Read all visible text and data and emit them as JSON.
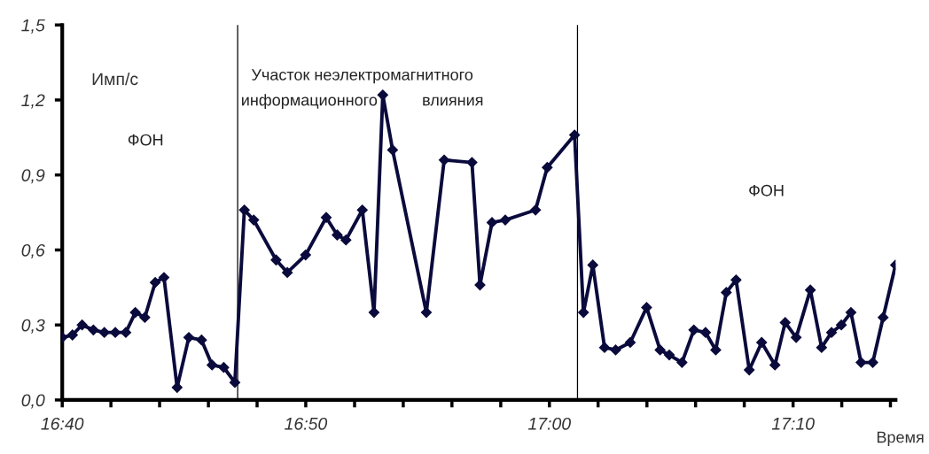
{
  "chart_data": {
    "type": "line",
    "xlabel": "Время",
    "ylabel": "Имп/с",
    "annotations": [
      "ФОН",
      "Участок неэлектромагнитного\nинформационного          влияния",
      "ФОН"
    ],
    "x": [
      16.6667,
      16.6737,
      16.6803,
      16.688,
      16.6955,
      16.703,
      16.7102,
      16.7167,
      16.7232,
      16.7303,
      16.7363,
      16.7453,
      16.7533,
      16.762,
      16.7692,
      16.7772,
      16.7848,
      16.7913,
      16.7977,
      16.813,
      16.8207,
      16.8332,
      16.8473,
      16.8548,
      16.8608,
      16.872,
      16.88,
      16.886,
      16.8927,
      16.9158,
      16.928,
      16.947,
      16.9525,
      16.9607,
      16.9698,
      16.9905,
      16.9985,
      17.0172,
      17.0233,
      17.0297,
      17.0377,
      17.0453,
      17.0553,
      17.0665,
      17.0757,
      17.082,
      17.0907,
      17.0988,
      17.1068,
      17.1138,
      17.121,
      17.1277,
      17.1367,
      17.1452,
      17.1543,
      17.1613,
      17.1688,
      17.1785,
      17.1862,
      17.193,
      17.1997,
      17.2063,
      17.2132,
      17.2212,
      17.2283,
      17.2368
    ],
    "series": [
      {
        "color": "#0a0a3c",
        "values": [
          0.25,
          0.26,
          0.3,
          0.28,
          0.27,
          0.27,
          0.27,
          0.35,
          0.33,
          0.47,
          0.49,
          0.05,
          0.25,
          0.24,
          0.14,
          0.13,
          0.07,
          0.76,
          0.72,
          0.56,
          0.51,
          0.58,
          0.73,
          0.66,
          0.64,
          0.76,
          0.35,
          1.22,
          1.0,
          0.35,
          0.96,
          0.95,
          0.46,
          0.71,
          0.72,
          0.76,
          0.93,
          1.06,
          0.35,
          0.54,
          0.21,
          0.2,
          0.23,
          0.37,
          0.2,
          0.18,
          0.15,
          0.28,
          0.27,
          0.2,
          0.43,
          0.48,
          0.12,
          0.23,
          0.14,
          0.31,
          0.25,
          0.44,
          0.21,
          0.27,
          0.3,
          0.35,
          0.15,
          0.15,
          0.33,
          0.54
        ]
      }
    ],
    "xlim": [
      16.6667,
      17.2368
    ],
    "xticks": [
      {
        "value": 16.6667,
        "label": "16:40"
      },
      {
        "value": 16.7,
        "label": null
      },
      {
        "value": 16.7333,
        "label": null
      },
      {
        "value": 16.7667,
        "label": null
      },
      {
        "value": 16.8,
        "label": null
      },
      {
        "value": 16.8333,
        "label": "16:50"
      },
      {
        "value": 16.8667,
        "label": null
      },
      {
        "value": 16.9,
        "label": null
      },
      {
        "value": 16.9333,
        "label": null
      },
      {
        "value": 16.9667,
        "label": null
      },
      {
        "value": 17.0,
        "label": "17:00"
      },
      {
        "value": 17.0333,
        "label": null
      },
      {
        "value": 17.0667,
        "label": null
      },
      {
        "value": 17.1,
        "label": null
      },
      {
        "value": 17.1333,
        "label": null
      },
      {
        "value": 17.1667,
        "label": "17:10"
      },
      {
        "value": 17.2,
        "label": null
      },
      {
        "value": 17.2333,
        "label": null
      }
    ],
    "ylim": [
      0,
      1.5
    ],
    "yticks": [
      {
        "value": 0,
        "label": "0,0"
      },
      {
        "value": 0.3,
        "label": "0,3"
      },
      {
        "value": 0.6,
        "label": "0,6"
      },
      {
        "value": 0.9,
        "label": "0,9"
      },
      {
        "value": 1.2,
        "label": "1,2"
      },
      {
        "value": 1.5,
        "label": "1,5"
      }
    ],
    "ref_lines": [
      {
        "axis": "x",
        "value": 16.7867,
        "color": "#000000"
      },
      {
        "axis": "x",
        "value": 17.0192,
        "color": "#000000"
      }
    ],
    "grid": false,
    "legend": false,
    "marker": "diamond",
    "line_style": "solid"
  }
}
